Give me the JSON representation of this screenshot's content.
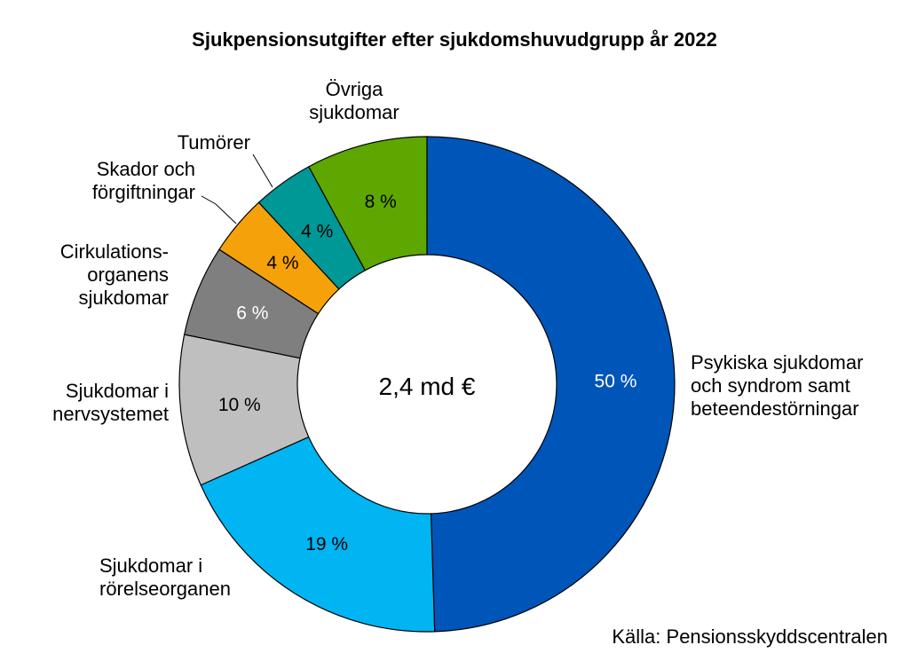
{
  "chart_data": {
    "type": "pie",
    "title": "Sjukpensionsutgifter efter sjukdomshuvudgrupp år 2022",
    "center_text": "2,4 md €",
    "source": "Källa: Pensionsskyddscentralen",
    "slices": [
      {
        "label_lines": [
          "Psykiska sjukdomar",
          "och syndrom samt",
          "beteendestörningar"
        ],
        "value": 50,
        "value_label": "50 %",
        "color": "#0055b8",
        "text_color": "#ffffff"
      },
      {
        "label_lines": [
          "Sjukdomar i",
          "rörelseorganen"
        ],
        "value": 19,
        "value_label": "19 %",
        "color": "#00b5f2",
        "text_color": "#000000"
      },
      {
        "label_lines": [
          "Sjukdomar i",
          "nervsystemet"
        ],
        "value": 10,
        "value_label": "10 %",
        "color": "#bfbfbf",
        "text_color": "#000000"
      },
      {
        "label_lines": [
          "Cirkulations-",
          "organens",
          "sjukdomar"
        ],
        "value": 6,
        "value_label": "6 %",
        "color": "#7f7f7f",
        "text_color": "#ffffff"
      },
      {
        "label_lines": [
          "Skador och",
          "förgiftningar"
        ],
        "value": 4,
        "value_label": "4 %",
        "color": "#f5a20a",
        "text_color": "#000000"
      },
      {
        "label_lines": [
          "Tumörer"
        ],
        "value": 4,
        "value_label": "4 %",
        "color": "#009797",
        "text_color": "#000000"
      },
      {
        "label_lines": [
          "Övriga",
          "sjukdomar"
        ],
        "value": 8,
        "value_label": "8 %",
        "color": "#5ea600",
        "text_color": "#000000"
      }
    ]
  }
}
